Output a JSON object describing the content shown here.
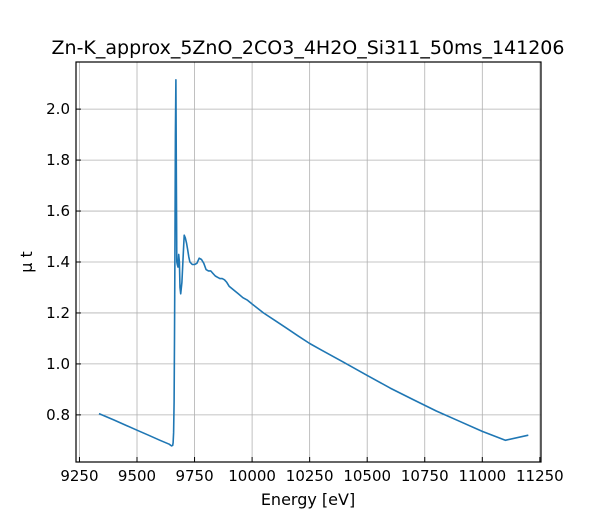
{
  "chart_data": {
    "type": "line",
    "title": "Zn-K_approx_5ZnO_2CO3_4H2O_Si311_50ms_141206",
    "xlabel": "Energy [eV]",
    "ylabel": "μ t",
    "xlim": [
      9235,
      11255
    ],
    "ylim": [
      0.615,
      2.185
    ],
    "xticks": [
      9250,
      9500,
      9750,
      10000,
      10250,
      10500,
      10750,
      11000,
      11250
    ],
    "yticks": [
      0.8,
      1.0,
      1.2,
      1.4,
      1.6,
      1.8,
      2.0
    ],
    "xtick_labels": [
      "9250",
      "9500",
      "9750",
      "10000",
      "10250",
      "10500",
      "10750",
      "11000",
      "11250"
    ],
    "ytick_labels": [
      "0.8",
      "1.0",
      "1.2",
      "1.4",
      "1.6",
      "1.8",
      "2.0"
    ],
    "grid": true,
    "line_color": "#1f77b4",
    "series": [
      {
        "x": [
          9335,
          9400,
          9450,
          9500,
          9550,
          9600,
          9640,
          9650,
          9655,
          9657,
          9659,
          9661,
          9663,
          9665,
          9667,
          9669,
          9671,
          9673,
          9675,
          9678,
          9681,
          9684,
          9687,
          9690,
          9695,
          9700,
          9705,
          9710,
          9715,
          9720,
          9725,
          9730,
          9740,
          9750,
          9760,
          9770,
          9780,
          9790,
          9800,
          9810,
          9820,
          9830,
          9840,
          9850,
          9860,
          9870,
          9880,
          9890,
          9900,
          9920,
          9940,
          9960,
          9980,
          10000,
          10050,
          10100,
          10150,
          10200,
          10250,
          10300,
          10400,
          10500,
          10600,
          10700,
          10800,
          10900,
          11000,
          11100,
          11200
        ],
        "y": [
          0.805,
          0.78,
          0.76,
          0.74,
          0.72,
          0.7,
          0.685,
          0.678,
          0.68,
          0.69,
          0.73,
          0.85,
          1.1,
          1.5,
          1.9,
          2.115,
          1.7,
          1.4,
          1.39,
          1.38,
          1.43,
          1.4,
          1.3,
          1.275,
          1.32,
          1.41,
          1.505,
          1.495,
          1.475,
          1.45,
          1.42,
          1.4,
          1.39,
          1.39,
          1.395,
          1.415,
          1.41,
          1.395,
          1.37,
          1.365,
          1.365,
          1.355,
          1.345,
          1.34,
          1.335,
          1.335,
          1.33,
          1.32,
          1.305,
          1.29,
          1.275,
          1.26,
          1.25,
          1.235,
          1.2,
          1.17,
          1.14,
          1.11,
          1.08,
          1.055,
          1.005,
          0.955,
          0.905,
          0.86,
          0.815,
          0.775,
          0.735,
          0.7,
          0.72
        ]
      }
    ]
  }
}
